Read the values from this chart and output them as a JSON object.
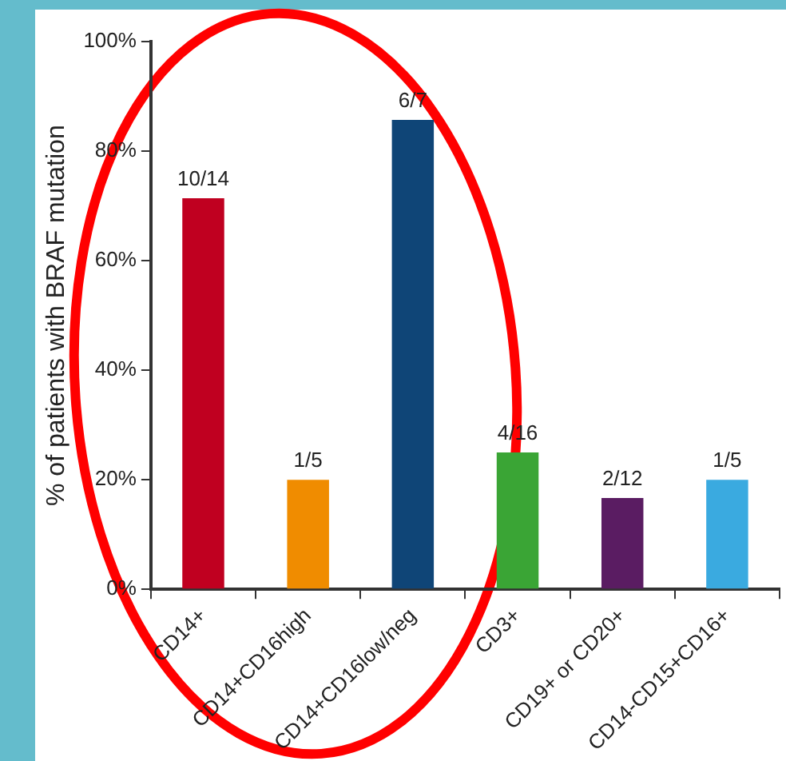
{
  "chart_data": {
    "type": "bar",
    "ylabel": "% of patients with BRAF mutation",
    "categories": [
      "CD14+",
      "CD14+CD16high",
      "CD14+CD16low/neg",
      "CD3+",
      "CD19+ or CD20+",
      "CD14-CD15+CD16+"
    ],
    "values": [
      71.4,
      20,
      85.7,
      25,
      16.7,
      20
    ],
    "colors": [
      "#c00020",
      "#f08c00",
      "#0f4577",
      "#3aa535",
      "#5a1c62",
      "#3aaae0"
    ],
    "annotations": [
      {
        "text": "10/14",
        "x": "CD14+",
        "y": 71.4
      },
      {
        "text": "1/5",
        "x": "CD14+CD16high",
        "y": 20
      },
      {
        "text": "6/7",
        "x": "CD14+CD16low/neg",
        "y": 85.7
      },
      {
        "text": "4/16",
        "x": "CD3+",
        "y": 25
      },
      {
        "text": "2/12",
        "x": "CD19+ or CD20+",
        "y": 16.7
      },
      {
        "text": "1/5",
        "x": "CD14-CD15+CD16+",
        "y": 20
      }
    ],
    "ylim": [
      0,
      100
    ],
    "yticks": [
      {
        "value": 0,
        "label": "0%"
      },
      {
        "value": 20,
        "label": "20%"
      },
      {
        "value": 40,
        "label": "40%"
      },
      {
        "value": 60,
        "label": "60%"
      },
      {
        "value": 80,
        "label": "80%"
      },
      {
        "value": 100,
        "label": "100%"
      }
    ],
    "grid": false,
    "legend": false
  }
}
